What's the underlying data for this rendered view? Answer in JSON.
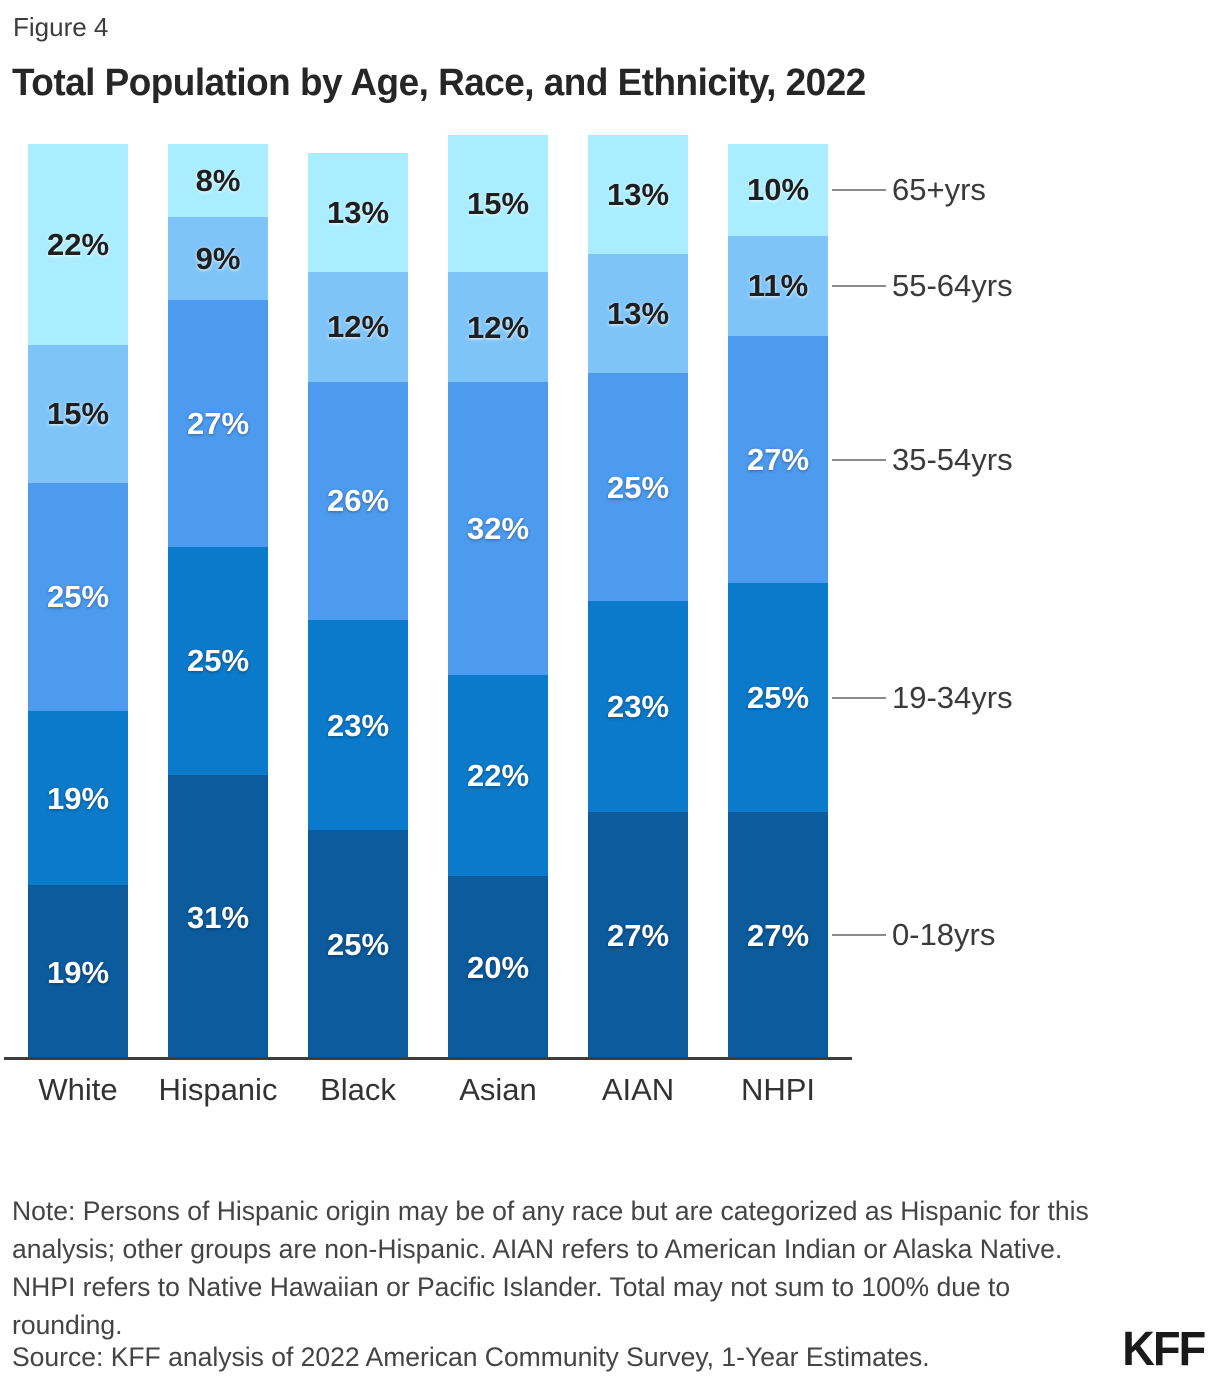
{
  "figure_label": "Figure 4",
  "title": "Total Population by Age, Race, and Ethnicity, 2022",
  "note": "Note: Persons of Hispanic origin may be of any race but are categorized as Hispanic for this analysis; other groups are non-Hispanic. AIAN refers to American Indian or Alaska Native. NHPI refers to Native Hawaiian or Pacific Islander. Total may not sum to 100% due to rounding.",
  "source": "Source: KFF analysis of 2022 American Community Survey, 1-Year Estimates.",
  "logo": "KFF",
  "colors": {
    "age_0_18": "#0b5b9d",
    "age_19_34": "#0b7aca",
    "age_35_54": "#4d9bef",
    "age_55_64": "#7fc4f8",
    "age_65_plus": "#a9edff",
    "axis": "#3d3d3d",
    "pointer_line": "#8c8c8c"
  },
  "chart_data": {
    "type": "bar",
    "subtype": "stacked-percent-column",
    "title": "Total Population by Age, Race, and Ethnicity, 2022",
    "categories": [
      "White",
      "Hispanic",
      "Black",
      "Asian",
      "AIAN",
      "NHPI"
    ],
    "series": [
      {
        "name": "0-18yrs",
        "color": "#0b5b9d",
        "label_color": "#ffffff",
        "label_style": "light",
        "values": [
          19,
          31,
          25,
          20,
          27,
          27
        ]
      },
      {
        "name": "19-34yrs",
        "color": "#0b7aca",
        "label_color": "#ffffff",
        "label_style": "light",
        "values": [
          19,
          25,
          23,
          22,
          23,
          25
        ]
      },
      {
        "name": "35-54yrs",
        "color": "#4d9bef",
        "label_color": "#ffffff",
        "label_style": "light",
        "values": [
          25,
          27,
          26,
          32,
          25,
          27
        ]
      },
      {
        "name": "55-64yrs",
        "color": "#7fc4f8",
        "label_color": "#1f1f1f",
        "label_style": "dark",
        "values": [
          15,
          9,
          12,
          12,
          13,
          11
        ]
      },
      {
        "name": "65+yrs",
        "color": "#a9edff",
        "label_color": "#1f1f1f",
        "label_style": "dark",
        "values": [
          22,
          8,
          13,
          15,
          13,
          10
        ]
      }
    ],
    "value_suffix": "%",
    "ylim": [
      0,
      101
    ],
    "grid": false,
    "legend_position": "right-of-last-bar",
    "right_axis_labels": [
      "65+yrs",
      "55-64yrs",
      "35-54yrs",
      "19-34yrs",
      "0-18yrs"
    ]
  }
}
